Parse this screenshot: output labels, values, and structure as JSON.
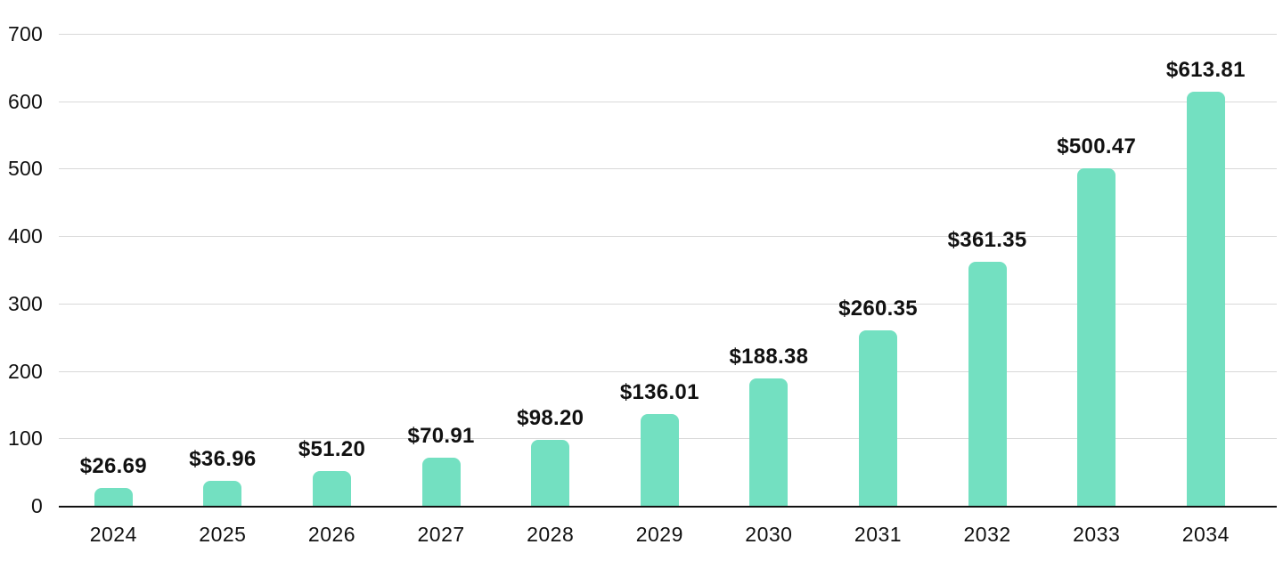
{
  "chart_data": {
    "type": "bar",
    "title": "",
    "xlabel": "",
    "ylabel": "",
    "categories": [
      "2024",
      "2025",
      "2026",
      "2027",
      "2028",
      "2029",
      "2030",
      "2031",
      "2032",
      "2033",
      "2034"
    ],
    "values": [
      26.69,
      36.96,
      51.2,
      70.91,
      98.2,
      136.01,
      188.38,
      260.35,
      361.35,
      500.47,
      613.81
    ],
    "value_labels": [
      "$26.69",
      "$36.96",
      "$51.20",
      "$70.91",
      "$98.20",
      "$136.01",
      "$188.38",
      "$260.35",
      "$361.35",
      "$500.47",
      "$613.81"
    ],
    "ylim": [
      0,
      700
    ],
    "yticks": [
      "0",
      "100",
      "200",
      "300",
      "400",
      "500",
      "600",
      "700"
    ],
    "grid": true,
    "legend": false,
    "colors": {
      "bar": "#73E0C1",
      "gridline": "#D9D9D9",
      "axis": "#111111",
      "tick_text": "#111111",
      "value_text": "#111111",
      "background": "#FFFFFF"
    }
  }
}
